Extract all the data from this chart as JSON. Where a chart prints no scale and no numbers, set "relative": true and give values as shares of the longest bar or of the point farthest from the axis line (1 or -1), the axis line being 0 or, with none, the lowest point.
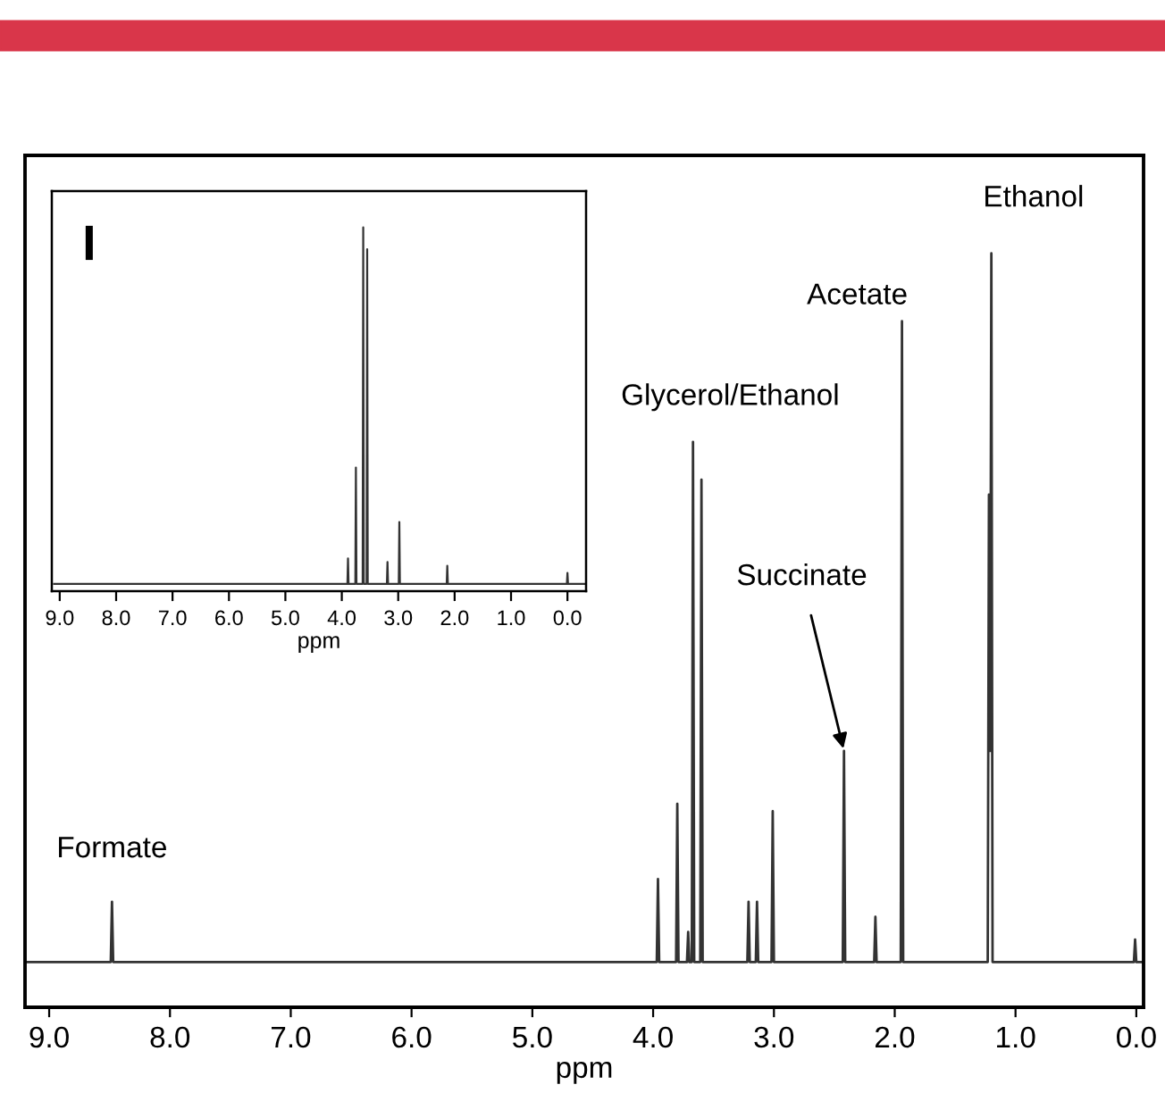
{
  "chart_data": [
    {
      "type": "line",
      "relative": true,
      "xlabel": "ppm",
      "tick_labels": "x",
      "grid": false,
      "marker": "none",
      "line_style": "solid",
      "xlim": [
        9.2,
        -0.06
      ],
      "xticks": [
        {
          "value": 9,
          "label": "9.0"
        },
        {
          "value": 8,
          "label": "8.0"
        },
        {
          "value": 7,
          "label": "7.0"
        },
        {
          "value": 6,
          "label": "6.0"
        },
        {
          "value": 5,
          "label": "5.0"
        },
        {
          "value": 4,
          "label": "4.0"
        },
        {
          "value": 3,
          "label": "3.0"
        },
        {
          "value": 2,
          "label": "2.0"
        },
        {
          "value": 1,
          "label": "1.0"
        },
        {
          "value": 0,
          "label": "0.0"
        }
      ],
      "series": [
        {
          "color": "#333333",
          "x": [
            9.2,
            8.49,
            8.48,
            8.47,
            3.97,
            3.96,
            3.95,
            3.81,
            3.8,
            3.79,
            3.72,
            3.71,
            3.7,
            3.68,
            3.67,
            3.66,
            3.61,
            3.6,
            3.59,
            3.22,
            3.21,
            3.2,
            3.15,
            3.14,
            3.13,
            3.02,
            3.01,
            3.0,
            2.43,
            2.42,
            2.41,
            2.17,
            2.16,
            2.15,
            1.95,
            1.94,
            1.93,
            1.23,
            1.22,
            1.21,
            1.2,
            1.19,
            0.02,
            0.01,
            0.0,
            -0.05
          ],
          "values": [
            0.06,
            0.06,
            0.14,
            0.06,
            0.06,
            0.17,
            0.06,
            0.06,
            0.27,
            0.06,
            0.06,
            0.1,
            0.06,
            0.06,
            0.75,
            0.06,
            0.06,
            0.7,
            0.06,
            0.06,
            0.14,
            0.06,
            0.06,
            0.14,
            0.06,
            0.06,
            0.26,
            0.06,
            0.06,
            0.34,
            0.06,
            0.06,
            0.12,
            0.06,
            0.06,
            0.91,
            0.06,
            0.06,
            0.68,
            0.34,
            1.0,
            0.06,
            0.06,
            0.09,
            0.06,
            0.06
          ]
        }
      ],
      "annotations": [
        {
          "text": "Formate",
          "x": 8.48,
          "y": 0.14
        },
        {
          "text": "Glycerol/Ethanol",
          "x": 3.67,
          "y": 0.75
        },
        {
          "text": "Succinate",
          "x": 2.42,
          "y": 0.34
        },
        {
          "text": "Acetate",
          "x": 1.94,
          "y": 0.91
        },
        {
          "text": "Ethanol",
          "x": 1.2,
          "y": 1.0
        }
      ]
    },
    {
      "type": "line",
      "relative": true,
      "xlabel": "ppm",
      "tick_labels": "x",
      "grid": false,
      "marker": "none",
      "line_style": "solid",
      "xlim": [
        9.14,
        -0.33
      ],
      "xticks": [
        {
          "value": 9,
          "label": "9.0"
        },
        {
          "value": 8,
          "label": "8.0"
        },
        {
          "value": 7,
          "label": "7.0"
        },
        {
          "value": 6,
          "label": "6.0"
        },
        {
          "value": 5,
          "label": "5.0"
        },
        {
          "value": 4,
          "label": "4.0"
        },
        {
          "value": 3,
          "label": "3.0"
        },
        {
          "value": 2,
          "label": "2.0"
        },
        {
          "value": 1,
          "label": "1.0"
        },
        {
          "value": 0,
          "label": "0.0"
        }
      ],
      "series": [
        {
          "color": "#333333",
          "x": [
            9.1,
            3.9,
            3.89,
            3.88,
            3.76,
            3.75,
            3.74,
            3.63,
            3.62,
            3.61,
            3.56,
            3.55,
            3.54,
            3.2,
            3.19,
            3.18,
            2.99,
            2.98,
            2.97,
            2.14,
            2.13,
            2.12,
            0.01,
            0.0,
            -0.01,
            -0.3
          ],
          "values": [
            0.02,
            0.02,
            0.09,
            0.02,
            0.02,
            0.34,
            0.02,
            0.02,
            1.0,
            0.02,
            0.02,
            0.94,
            0.02,
            0.02,
            0.08,
            0.02,
            0.02,
            0.19,
            0.02,
            0.02,
            0.07,
            0.02,
            0.02,
            0.05,
            0.02,
            0.02
          ]
        }
      ],
      "annotations": [
        "I"
      ]
    }
  ]
}
